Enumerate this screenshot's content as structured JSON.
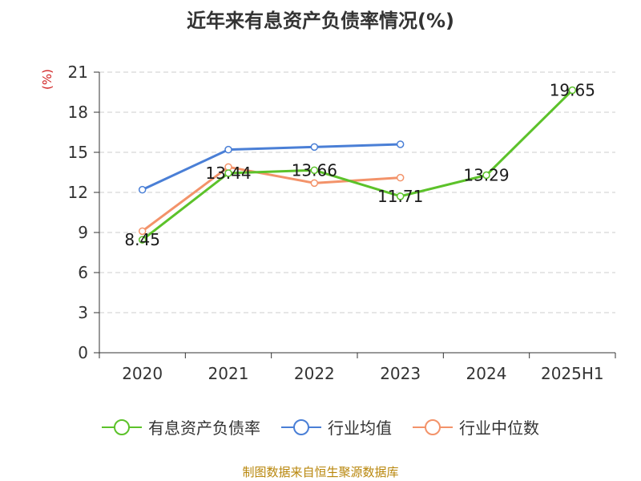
{
  "title": "近年来有息资产负债率情况(%)",
  "unit_label": "(%)",
  "source": "制图数据来自恒生聚源数据库",
  "chart_data": {
    "type": "line",
    "title": "近年来有息资产负债率情况(%)",
    "ylabel": "(%)",
    "xlabel": "",
    "categories": [
      "2020",
      "2021",
      "2022",
      "2023",
      "2024",
      "2025H1"
    ],
    "ylim": [
      0,
      21
    ],
    "yticks": [
      0,
      3,
      6,
      9,
      12,
      15,
      18,
      21
    ],
    "grid": true,
    "legend_position": "bottom",
    "series": [
      {
        "name": "有息资产负债率",
        "color": "#5cc22a",
        "values": [
          8.45,
          13.44,
          13.66,
          11.71,
          13.29,
          19.65
        ],
        "labels": [
          "8.45",
          "13.44",
          "13.66",
          "11.71",
          "13.29",
          "19.65"
        ]
      },
      {
        "name": "行业均值",
        "color": "#4a7fd6",
        "values": [
          12.2,
          15.2,
          15.4,
          15.6,
          null,
          null
        ]
      },
      {
        "name": "行业中位数",
        "color": "#f3936a",
        "values": [
          9.1,
          13.9,
          12.7,
          13.1,
          null,
          null
        ]
      }
    ]
  }
}
